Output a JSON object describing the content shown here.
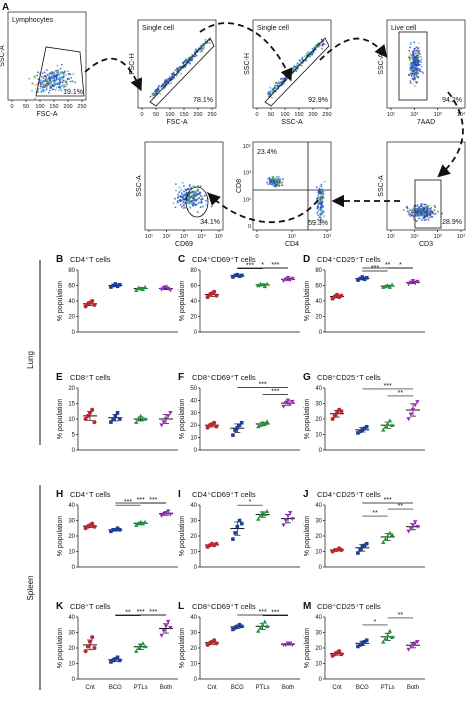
{
  "flow": {
    "letter": "A",
    "panels": [
      {
        "id": "lymph",
        "title": "Lymphocytes",
        "x_label": "FSC-A",
        "y_label": "SSC-A",
        "pct": "19.1%",
        "xticks": [
          "0",
          "50",
          "100",
          "150",
          "200",
          "250"
        ]
      },
      {
        "id": "single1",
        "title": "Single cell",
        "x_label": "FSC-A",
        "y_label": "FSC-H",
        "pct": "78.1%",
        "xticks": [
          "0",
          "50",
          "100",
          "150",
          "200",
          "250"
        ]
      },
      {
        "id": "single2",
        "title": "Single cell",
        "x_label": "SSC-A",
        "y_label": "SSC-H",
        "pct": "92.9%",
        "xticks": [
          "0",
          "50",
          "100",
          "150",
          "200",
          "250"
        ]
      },
      {
        "id": "live",
        "title": "Live cell",
        "x_label": "7AAD",
        "y_label": "SSC-A",
        "pct": "94.2%",
        "xticks": [
          "10¹",
          "10²",
          "10³",
          "10⁴"
        ]
      },
      {
        "id": "cd3",
        "title": "",
        "x_label": "CD3",
        "y_label": "SSC-A",
        "pct": "28.9%",
        "xticks": [
          "10¹",
          "10²",
          "10³",
          "10⁴"
        ]
      },
      {
        "id": "cd4cd8",
        "title": "",
        "x_label": "CD4",
        "y_label": "CD8",
        "pct": "23.4%",
        "pct2": "59.3%",
        "xticks": [
          "0",
          "10¹",
          "10³"
        ],
        "yticks": [
          "0",
          "10¹",
          "10³",
          "10⁵"
        ]
      },
      {
        "id": "cd69",
        "title": "",
        "x_label": "CD69",
        "y_label": "SSC-A",
        "pct": "34.1%",
        "xticks": [
          "10¹",
          "10²",
          "10³",
          "10⁴",
          "10⁵"
        ]
      }
    ]
  },
  "row_labels": {
    "lung": "Lung",
    "spleen": "Spleen"
  },
  "ylabel": "% population",
  "groups": [
    "Cnt",
    "BCG",
    "PTLs",
    "Both"
  ],
  "group_colors": [
    "#c0262d",
    "#1e3e9e",
    "#1e9a3a",
    "#9b2bbd"
  ],
  "chart_data": [
    {
      "letter": "B",
      "title": "CD4⁺T cells",
      "type": "scatter",
      "ylim": [
        0,
        80
      ],
      "yticks": [
        0,
        20,
        40,
        60,
        80
      ],
      "series": [
        {
          "name": "Cnt",
          "values": [
            33,
            36,
            38,
            40,
            35
          ]
        },
        {
          "name": "BCG",
          "values": [
            58,
            60,
            62,
            59,
            61
          ]
        },
        {
          "name": "PTLs",
          "values": [
            54,
            57,
            56,
            55,
            58
          ]
        },
        {
          "name": "Both",
          "values": [
            55,
            57,
            58,
            56,
            54
          ]
        }
      ],
      "sig": []
    },
    {
      "letter": "C",
      "title": "CD4⁺CD69⁺T cells",
      "type": "scatter",
      "ylim": [
        0,
        80
      ],
      "yticks": [
        0,
        20,
        40,
        60,
        80
      ],
      "series": [
        {
          "name": "Cnt",
          "values": [
            45,
            48,
            50,
            52,
            47
          ]
        },
        {
          "name": "BCG",
          "values": [
            71,
            73,
            74,
            72,
            73
          ]
        },
        {
          "name": "PTLs",
          "values": [
            60,
            62,
            61,
            59,
            62
          ]
        },
        {
          "name": "Both",
          "values": [
            66,
            68,
            70,
            67,
            69
          ]
        }
      ],
      "sig": [
        {
          "from": 1,
          "to": 2,
          "label": "***"
        },
        {
          "from": 2,
          "to": 3,
          "label": "***"
        },
        {
          "from": 1,
          "to": 3,
          "label": "*"
        }
      ]
    },
    {
      "letter": "D",
      "title": "CD4⁺CD25⁺T cells",
      "type": "scatter",
      "ylim": [
        0,
        80
      ],
      "yticks": [
        0,
        20,
        40,
        60,
        80
      ],
      "series": [
        {
          "name": "Cnt",
          "values": [
            43,
            46,
            48,
            45,
            47
          ]
        },
        {
          "name": "BCG",
          "values": [
            67,
            69,
            71,
            68,
            70
          ]
        },
        {
          "name": "PTLs",
          "values": [
            58,
            59,
            60,
            58,
            61
          ]
        },
        {
          "name": "Both",
          "values": [
            62,
            64,
            66,
            63,
            65
          ]
        }
      ],
      "sig": [
        {
          "from": 1,
          "to": 2,
          "label": "***"
        },
        {
          "from": 2,
          "to": 3,
          "label": "*"
        },
        {
          "from": 1,
          "to": 3,
          "label": "**"
        }
      ]
    },
    {
      "letter": "E",
      "title": "CD8⁺T cells",
      "type": "scatter",
      "ylim": [
        0,
        20
      ],
      "yticks": [
        0,
        5,
        10,
        15,
        20
      ],
      "series": [
        {
          "name": "Cnt",
          "values": [
            10,
            11,
            12,
            13,
            9
          ]
        },
        {
          "name": "BCG",
          "values": [
            9,
            10,
            11,
            12,
            10
          ]
        },
        {
          "name": "PTLs",
          "values": [
            9,
            10,
            11,
            10,
            10
          ]
        },
        {
          "name": "Both",
          "values": [
            8,
            9,
            10,
            11,
            12
          ]
        }
      ],
      "sig": []
    },
    {
      "letter": "F",
      "title": "CD8⁺CD69⁺T cells",
      "type": "scatter",
      "ylim": [
        0,
        50
      ],
      "yticks": [
        0,
        10,
        20,
        30,
        40,
        50
      ],
      "series": [
        {
          "name": "Cnt",
          "values": [
            18,
            20,
            21,
            22,
            19
          ]
        },
        {
          "name": "BCG",
          "values": [
            12,
            16,
            18,
            20,
            22
          ]
        },
        {
          "name": "PTLs",
          "values": [
            19,
            20,
            22,
            21,
            23
          ]
        },
        {
          "name": "Both",
          "values": [
            35,
            38,
            40,
            37,
            39
          ]
        }
      ],
      "sig": [
        {
          "from": 2,
          "to": 3,
          "label": "***"
        },
        {
          "from": 1,
          "to": 3,
          "label": "***"
        }
      ]
    },
    {
      "letter": "G",
      "title": "CD8⁺CD25⁺T cells",
      "type": "scatter",
      "ylim": [
        0,
        40
      ],
      "yticks": [
        0,
        10,
        20,
        30,
        40
      ],
      "series": [
        {
          "name": "Cnt",
          "values": [
            20,
            22,
            24,
            26,
            25
          ]
        },
        {
          "name": "BCG",
          "values": [
            11,
            12,
            13,
            14,
            15
          ]
        },
        {
          "name": "PTLs",
          "values": [
            13,
            15,
            17,
            19,
            16
          ]
        },
        {
          "name": "Both",
          "values": [
            20,
            23,
            26,
            29,
            31
          ]
        }
      ],
      "sig": [
        {
          "from": 2,
          "to": 3,
          "label": "**"
        },
        {
          "from": 1,
          "to": 3,
          "label": "***"
        }
      ]
    },
    {
      "letter": "H",
      "title": "CD4⁺T cells",
      "type": "scatter",
      "ylim": [
        0,
        40
      ],
      "yticks": [
        0,
        10,
        20,
        30,
        40
      ],
      "series": [
        {
          "name": "Cnt",
          "values": [
            25,
            26,
            27,
            28,
            26
          ]
        },
        {
          "name": "BCG",
          "values": [
            23,
            24,
            24,
            25,
            24
          ]
        },
        {
          "name": "PTLs",
          "values": [
            27,
            28,
            29,
            28,
            29
          ]
        },
        {
          "name": "Both",
          "values": [
            33,
            34,
            35,
            36,
            34
          ]
        }
      ],
      "sig": [
        {
          "from": 1,
          "to": 2,
          "label": "***"
        },
        {
          "from": 2,
          "to": 3,
          "label": "***"
        },
        {
          "from": 1,
          "to": 3,
          "label": "***"
        }
      ]
    },
    {
      "letter": "I",
      "title": "CD4⁺CD69⁺T cells",
      "type": "scatter",
      "ylim": [
        0,
        40
      ],
      "yticks": [
        0,
        10,
        20,
        30,
        40
      ],
      "series": [
        {
          "name": "Cnt",
          "values": [
            13,
            14,
            15,
            14,
            15
          ]
        },
        {
          "name": "BCG",
          "values": [
            18,
            22,
            26,
            30,
            28
          ]
        },
        {
          "name": "PTLs",
          "values": [
            31,
            33,
            35,
            34,
            36
          ]
        },
        {
          "name": "Both",
          "values": [
            27,
            30,
            33,
            35,
            31
          ]
        }
      ],
      "sig": [
        {
          "from": 1,
          "to": 2,
          "label": "*"
        }
      ]
    },
    {
      "letter": "J",
      "title": "CD4⁺CD25⁺T cells",
      "type": "scatter",
      "ylim": [
        0,
        40
      ],
      "yticks": [
        0,
        10,
        20,
        30,
        40
      ],
      "series": [
        {
          "name": "Cnt",
          "values": [
            10,
            11,
            11,
            12,
            11
          ]
        },
        {
          "name": "BCG",
          "values": [
            9,
            11,
            13,
            14,
            15
          ]
        },
        {
          "name": "PTLs",
          "values": [
            16,
            18,
            20,
            22,
            21
          ]
        },
        {
          "name": "Both",
          "values": [
            23,
            25,
            27,
            29,
            26
          ]
        }
      ],
      "sig": [
        {
          "from": 1,
          "to": 2,
          "label": "**"
        },
        {
          "from": 2,
          "to": 3,
          "label": "**"
        },
        {
          "from": 1,
          "to": 3,
          "label": "***"
        }
      ]
    },
    {
      "letter": "K",
      "title": "CD8⁺T cells",
      "type": "scatter",
      "ylim": [
        0,
        40
      ],
      "yticks": [
        0,
        10,
        20,
        30,
        40
      ],
      "series": [
        {
          "name": "Cnt",
          "values": [
            18,
            21,
            24,
            27,
            20
          ]
        },
        {
          "name": "BCG",
          "values": [
            11,
            12,
            13,
            14,
            12
          ]
        },
        {
          "name": "PTLs",
          "values": [
            18,
            20,
            22,
            23,
            21
          ]
        },
        {
          "name": "Both",
          "values": [
            28,
            31,
            34,
            37,
            33
          ]
        }
      ],
      "sig": [
        {
          "from": 1,
          "to": 2,
          "label": "**"
        },
        {
          "from": 2,
          "to": 3,
          "label": "***"
        },
        {
          "from": 1,
          "to": 3,
          "label": "***"
        }
      ]
    },
    {
      "letter": "L",
      "title": "CD8⁺CD69⁺T cells",
      "type": "scatter",
      "ylim": [
        0,
        40
      ],
      "yticks": [
        0,
        10,
        20,
        30,
        40
      ],
      "series": [
        {
          "name": "Cnt",
          "values": [
            22,
            23,
            24,
            25,
            23
          ]
        },
        {
          "name": "BCG",
          "values": [
            32,
            33,
            34,
            35,
            34
          ]
        },
        {
          "name": "PTLs",
          "values": [
            31,
            33,
            35,
            37,
            34
          ]
        },
        {
          "name": "Both",
          "values": [
            22,
            22,
            23,
            23,
            22
          ]
        }
      ],
      "sig": [
        {
          "from": 2,
          "to": 3,
          "label": "***"
        },
        {
          "from": 1,
          "to": 3,
          "label": "***"
        }
      ]
    },
    {
      "letter": "M",
      "title": "CD8⁺CD25⁺T cells",
      "type": "scatter",
      "ylim": [
        0,
        40
      ],
      "yticks": [
        0,
        10,
        20,
        30,
        40
      ],
      "series": [
        {
          "name": "Cnt",
          "values": [
            15,
            16,
            17,
            18,
            16
          ]
        },
        {
          "name": "BCG",
          "values": [
            21,
            22,
            23,
            24,
            25
          ]
        },
        {
          "name": "PTLs",
          "values": [
            24,
            26,
            28,
            31,
            27
          ]
        },
        {
          "name": "Both",
          "values": [
            19,
            21,
            22,
            23,
            24
          ]
        }
      ],
      "sig": [
        {
          "from": 1,
          "to": 2,
          "label": "*"
        },
        {
          "from": 2,
          "to": 3,
          "label": "**"
        }
      ]
    }
  ]
}
